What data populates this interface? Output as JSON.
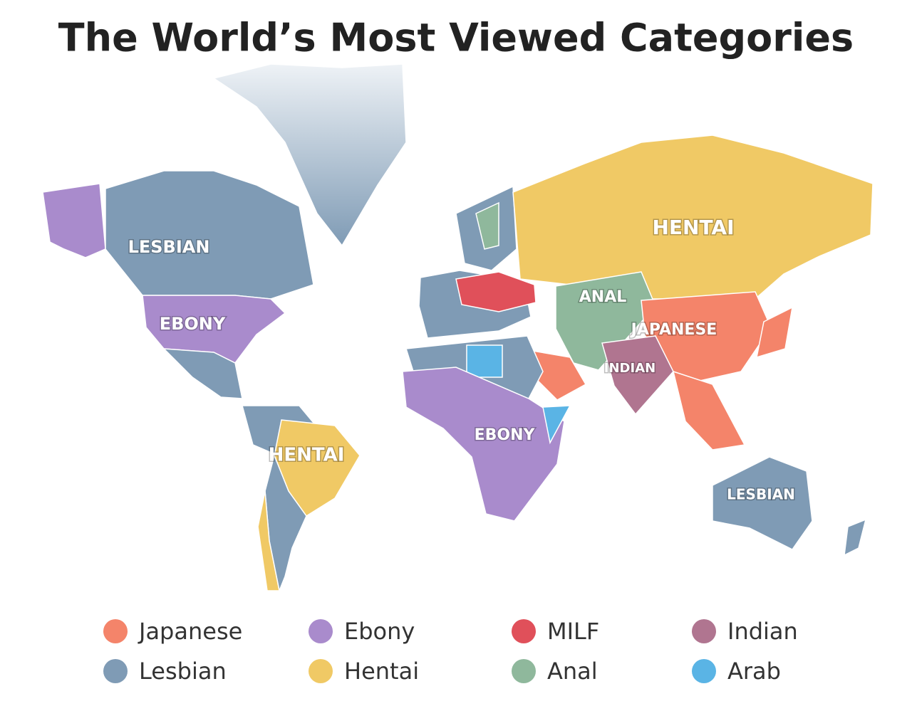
{
  "title": "The World’s Most Viewed Categories",
  "map_labels": [
    "LESBIAN",
    "EBONY",
    "HENTAI",
    "ANAL",
    "JAPANESE",
    "INDIAN",
    "EBONY",
    "HENTAI",
    "LESBIAN"
  ],
  "legend": [
    {
      "label": "Japanese",
      "color": "#f4846a"
    },
    {
      "label": "Ebony",
      "color": "#a98bcc"
    },
    {
      "label": "MILF",
      "color": "#e0505a"
    },
    {
      "label": "Indian",
      "color": "#b07590"
    },
    {
      "label": "Lesbian",
      "color": "#7f9bb5"
    },
    {
      "label": "Hentai",
      "color": "#f0c965"
    },
    {
      "label": "Anal",
      "color": "#8fb89c"
    },
    {
      "label": "Arab",
      "color": "#5ab4e5"
    }
  ]
}
